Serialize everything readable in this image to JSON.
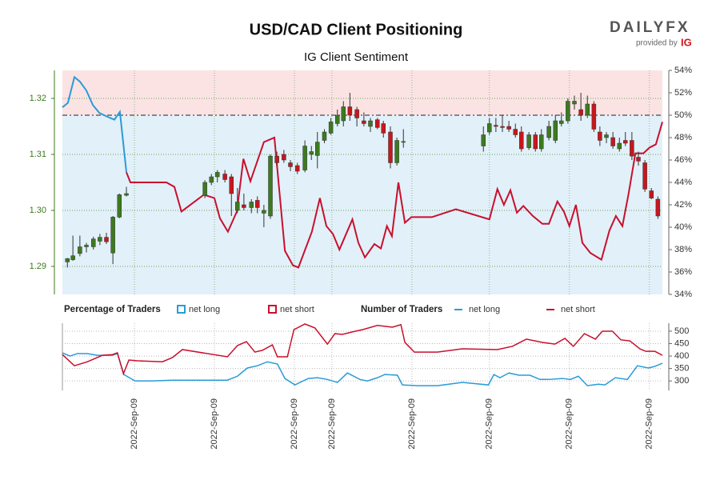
{
  "brand": "DAILYFX",
  "provided_by": "provided by",
  "provider": "IG",
  "chart_data": [
    {
      "type": "candlestick",
      "title": "USD/CAD Client Positioning",
      "subtitle": "IG Client Sentiment",
      "legend_title": "Percentage of Traders",
      "grid": true,
      "xlim": [
        0,
        120
      ],
      "ylim": [
        1.285,
        1.325
      ],
      "yticks": [
        1.29,
        {
          "value": 1.3,
          "label": "1.30"
        },
        1.31,
        1.32
      ],
      "y2lim": [
        34,
        54
      ],
      "y2ticks": [
        {
          "value": 34,
          "label": "34%"
        },
        {
          "value": 36,
          "label": "36%"
        },
        {
          "value": 38,
          "label": "38%"
        },
        {
          "value": 40,
          "label": "40%"
        },
        {
          "value": 42,
          "label": "42%"
        },
        {
          "value": 44,
          "label": "44%"
        },
        {
          "value": 46,
          "label": "46%"
        },
        {
          "value": 48,
          "label": "48%"
        },
        {
          "value": 50,
          "label": "50%"
        },
        {
          "value": 52,
          "label": "52%"
        },
        {
          "value": 54,
          "label": "54%"
        }
      ],
      "y2_reference": 50,
      "up_color": "#3c7a1e",
      "down_color": "#c8161d",
      "candles": {
        "x": [
          1,
          2.1,
          3.5,
          4.8,
          6.2,
          7.5,
          8.8,
          10.1,
          11.4,
          12.8,
          28.5,
          29.8,
          31,
          32.5,
          33.8,
          35,
          36.3,
          37.8,
          39,
          40.3,
          41.6,
          42.9,
          44.3,
          45.6,
          47,
          48.5,
          49.8,
          51,
          52.4,
          53.7,
          55,
          56.2,
          57.5,
          58.9,
          60.3,
          61.6,
          63,
          64.2,
          65.6,
          66.9,
          68.2,
          84.2,
          85.4,
          86.7,
          88,
          89.3,
          90.6,
          91.8,
          93.3,
          94.6,
          95.8,
          97.3,
          98.6,
          99.8,
          101.1,
          102.4,
          103.7,
          105,
          106.3,
          107.5,
          108.8,
          110.1,
          111.4,
          112.6,
          113.9,
          115.2,
          116.5,
          117.8,
          119.1
        ],
        "open": [
          1.2908,
          1.2912,
          1.2923,
          1.2935,
          1.2935,
          1.2945,
          1.2952,
          1.2924,
          1.2988,
          1.3027,
          1.3027,
          1.305,
          1.306,
          1.3065,
          1.306,
          1.3,
          1.301,
          1.3005,
          1.3018,
          1.2995,
          1.299,
          1.3097,
          1.31,
          1.3085,
          1.308,
          1.3072,
          1.31,
          1.3098,
          1.3125,
          1.3138,
          1.3155,
          1.316,
          1.3185,
          1.318,
          1.316,
          1.315,
          1.3162,
          1.3155,
          1.314,
          1.3085,
          1.3123,
          1.3115,
          1.314,
          1.3152,
          1.315,
          1.315,
          1.3145,
          1.314,
          1.3112,
          1.3135,
          1.311,
          1.313,
          1.3125,
          1.3155,
          1.316,
          1.319,
          1.318,
          1.317,
          1.319,
          1.314,
          1.313,
          1.313,
          1.311,
          1.3125,
          1.3125,
          1.3095,
          1.3085,
          1.3035,
          1.302
        ],
        "high": [
          1.2915,
          1.2955,
          1.2955,
          1.2942,
          1.2953,
          1.2958,
          1.296,
          1.299,
          1.303,
          1.3042,
          1.3054,
          1.3065,
          1.3072,
          1.3072,
          1.3065,
          1.304,
          1.303,
          1.302,
          1.3025,
          1.301,
          1.31,
          1.3105,
          1.3108,
          1.309,
          1.3085,
          1.3125,
          1.3115,
          1.314,
          1.3145,
          1.3165,
          1.318,
          1.3195,
          1.321,
          1.3185,
          1.3175,
          1.3165,
          1.3165,
          1.316,
          1.315,
          1.313,
          1.3145,
          1.315,
          1.3165,
          1.3165,
          1.317,
          1.316,
          1.3155,
          1.315,
          1.314,
          1.314,
          1.3145,
          1.316,
          1.317,
          1.3175,
          1.32,
          1.3205,
          1.321,
          1.3205,
          1.3195,
          1.315,
          1.314,
          1.314,
          1.313,
          1.314,
          1.314,
          1.3105,
          1.309,
          1.304,
          1.3025
        ],
        "low": [
          1.2898,
          1.291,
          1.2918,
          1.2925,
          1.293,
          1.2938,
          1.294,
          1.2904,
          1.2986,
          1.3025,
          1.3022,
          1.3045,
          1.305,
          1.305,
          1.299,
          1.2995,
          1.3,
          1.2995,
          1.2995,
          1.297,
          1.2985,
          1.308,
          1.3085,
          1.307,
          1.3065,
          1.3068,
          1.309,
          1.3075,
          1.312,
          1.3135,
          1.315,
          1.315,
          1.316,
          1.315,
          1.315,
          1.314,
          1.3145,
          1.313,
          1.3075,
          1.308,
          1.3112,
          1.3105,
          1.3135,
          1.314,
          1.314,
          1.314,
          1.313,
          1.3105,
          1.3108,
          1.3105,
          1.3105,
          1.3125,
          1.312,
          1.315,
          1.3155,
          1.318,
          1.316,
          1.3165,
          1.314,
          1.3115,
          1.312,
          1.311,
          1.3105,
          1.3115,
          1.309,
          1.308,
          1.3033,
          1.302,
          1.2985
        ],
        "close": [
          1.2914,
          1.2919,
          1.2935,
          1.2938,
          1.2949,
          1.2952,
          1.2944,
          1.2988,
          1.3028,
          1.303,
          1.305,
          1.306,
          1.3068,
          1.3055,
          1.303,
          1.3015,
          1.3005,
          1.3015,
          1.3005,
          1.3,
          1.3097,
          1.3085,
          1.309,
          1.3078,
          1.307,
          1.3115,
          1.3105,
          1.3122,
          1.314,
          1.3158,
          1.317,
          1.3185,
          1.317,
          1.3165,
          1.3155,
          1.316,
          1.3148,
          1.3138,
          1.3085,
          1.3125,
          1.3123,
          1.3135,
          1.3155,
          1.315,
          1.3148,
          1.3145,
          1.3135,
          1.311,
          1.3135,
          1.311,
          1.3135,
          1.315,
          1.316,
          1.316,
          1.3195,
          1.3195,
          1.317,
          1.319,
          1.3145,
          1.3125,
          1.3135,
          1.3115,
          1.312,
          1.312,
          1.3097,
          1.3088,
          1.3038,
          1.3022,
          1.299
        ]
      },
      "series": [
        {
          "name": "net long",
          "color": "#2a9bd8",
          "axis": "y2",
          "x": [
            0,
            1.1,
            2.4,
            3.5,
            4.8,
            6.1,
            7.4,
            8.8,
            10.4,
            11.5,
            12.8
          ],
          "values": [
            50.7,
            51.1,
            53.4,
            53,
            52.2,
            50.9,
            50.2,
            49.9,
            49.6,
            50.3,
            44.9
          ]
        },
        {
          "name": "net short",
          "color": "#c8102e",
          "axis": "y2",
          "x": [
            12.8,
            13.6,
            20.8,
            22.4,
            23.8,
            28.3,
            30.4,
            31.5,
            33.1,
            34.9,
            36.2,
            37.6,
            40.3,
            42.4,
            44.5,
            46.1,
            47.2,
            49.9,
            51.5,
            52.8,
            54.1,
            55.4,
            58,
            59.2,
            60.5,
            62.4,
            63.7,
            64.9,
            65.9,
            67.2,
            68.5,
            69.8,
            73.9,
            78.7,
            85.4,
            87,
            88.3,
            89.6,
            90.9,
            92.2,
            94.1,
            96,
            97.3,
            99,
            100.3,
            101.4,
            102.7,
            104,
            105.6,
            107.8,
            109.4,
            110.7,
            112,
            113.2,
            114.6,
            116.2,
            117.4,
            118.7,
            120
          ],
          "values": [
            44.9,
            44,
            44,
            43.6,
            41.4,
            42.9,
            42.6,
            40.8,
            39.6,
            41.4,
            46.1,
            44.1,
            47.6,
            48,
            37.9,
            36.6,
            36.4,
            39.6,
            42.6,
            40.1,
            39.4,
            38,
            40.7,
            38.6,
            37.3,
            38.5,
            38.1,
            40.1,
            39.2,
            44,
            40.4,
            40.9,
            40.9,
            41.6,
            40.7,
            43.4,
            42,
            43.3,
            41.3,
            41.9,
            41,
            40.3,
            40.3,
            42.3,
            41.4,
            40.1,
            42,
            38.6,
            37.7,
            37.1,
            39.7,
            41,
            40.1,
            42.9,
            46.6,
            46.6,
            47.1,
            47.4,
            49.4
          ]
        }
      ]
    },
    {
      "type": "line",
      "legend_title": "Number of Traders",
      "grid": true,
      "xlim": [
        0,
        120
      ],
      "ylim": [
        262,
        532
      ],
      "yticks": [
        300,
        350,
        400,
        450,
        500
      ],
      "xticks": [
        {
          "value": 14.4,
          "label": "2022-Sep-09"
        },
        {
          "value": 30.4,
          "label": "2022-Sep-09"
        },
        {
          "value": 46.4,
          "label": "2022-Sep-09"
        },
        {
          "value": 53.9,
          "label": "2022-Sep-09"
        },
        {
          "value": 69.9,
          "label": "2022-Sep-09"
        },
        {
          "value": 85.4,
          "label": "2022-Sep-09"
        },
        {
          "value": 101.4,
          "label": "2022-Sep-09"
        },
        {
          "value": 117.4,
          "label": "2022-Sep-09"
        }
      ],
      "series": [
        {
          "name": "net long",
          "color": "#2a9bd8",
          "x": [
            0,
            1.5,
            3,
            5,
            7,
            10,
            11,
            12.3,
            14.5,
            18,
            22,
            33,
            35,
            37,
            39,
            41,
            43,
            44.5,
            46.5,
            47.5,
            49.2,
            51,
            53,
            55,
            57,
            59.5,
            61,
            63,
            64.5,
            67,
            68,
            71,
            75,
            80,
            85.2,
            86.3,
            87.5,
            89.3,
            91.3,
            93.5,
            95.5,
            97.3,
            100,
            101.6,
            103.2,
            105,
            107.2,
            108.5,
            110.6,
            113,
            115,
            117.2,
            118.4,
            120
          ],
          "values": [
            413,
            400,
            410,
            410,
            403,
            403,
            410,
            326,
            300,
            300,
            303,
            303,
            319,
            352,
            361,
            377,
            368,
            310,
            284,
            294,
            310,
            313,
            306,
            294,
            332,
            306,
            300,
            313,
            326,
            323,
            284,
            281,
            281,
            294,
            284,
            326,
            313,
            332,
            323,
            323,
            306,
            306,
            310,
            306,
            319,
            281,
            287,
            284,
            313,
            306,
            361,
            352,
            358,
            371
          ]
        },
        {
          "name": "net short",
          "color": "#c8102e",
          "x": [
            0,
            2.4,
            5,
            8,
            10,
            11,
            12.2,
            13.3,
            15,
            20,
            22,
            24,
            33,
            35,
            36.8,
            38.5,
            40,
            42,
            43,
            45,
            46.3,
            48.5,
            50.5,
            53,
            54.5,
            56,
            58,
            60,
            63,
            66,
            67.7,
            68.5,
            70.4,
            75,
            80,
            87,
            90,
            92.8,
            96,
            98.5,
            100.5,
            102.2,
            104.4,
            106.6,
            108,
            110,
            111.7,
            113.5,
            115.5,
            116.7,
            118.5,
            120
          ],
          "values": [
            406,
            361,
            377,
            403,
            406,
            413,
            329,
            384,
            381,
            377,
            394,
            426,
            397,
            442,
            458,
            416,
            423,
            445,
            397,
            397,
            506,
            529,
            513,
            448,
            490,
            487,
            497,
            506,
            523,
            516,
            526,
            455,
            416,
            416,
            429,
            426,
            439,
            468,
            455,
            448,
            471,
            439,
            490,
            468,
            500,
            500,
            465,
            461,
            429,
            419,
            419,
            403
          ]
        }
      ]
    }
  ]
}
